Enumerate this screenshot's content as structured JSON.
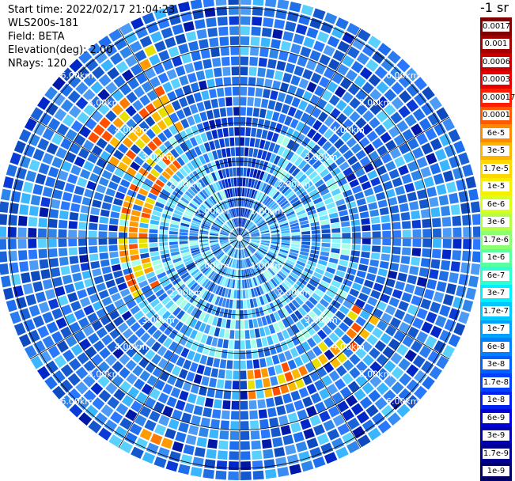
{
  "header": {
    "start_time": "Start time: 2022/02/17 21:04:23",
    "instrument": "WLS200s-181",
    "field": "Field: BETA",
    "elevation": "Elevation(deg): 2.00",
    "nrays": "NRays: 120"
  },
  "colorbar": {
    "title": "-1 sr",
    "labels": [
      "0.0017",
      "0.001",
      "0.0006",
      "0.0003",
      "0.00017",
      "0.0001",
      "6e-5",
      "3e-5",
      "1.7e-5",
      "1e-5",
      "6e-6",
      "3e-6",
      "1.7e-6",
      "1e-6",
      "6e-7",
      "3e-7",
      "1.7e-7",
      "1e-7",
      "6e-8",
      "3e-8",
      "1.7e-8",
      "1e-8",
      "6e-9",
      "3e-9",
      "1.7e-9",
      "1e-9"
    ],
    "colors": [
      "#7f0000",
      "#a50000",
      "#c80000",
      "#e60000",
      "#ff1e00",
      "#ff5a00",
      "#ff8a00",
      "#ffb400",
      "#ffd700",
      "#f5f000",
      "#d8ff1e",
      "#b4ff46",
      "#8cff6e",
      "#5affa0",
      "#2effcc",
      "#00f0ff",
      "#00c8ff",
      "#00a0ff",
      "#0080ff",
      "#0060ff",
      "#0040ff",
      "#0020f0",
      "#0000d8",
      "#0000b4",
      "#000090",
      "#000066"
    ]
  },
  "range_rings": {
    "labels": [
      "1.00km",
      "2.00km",
      "3.00km",
      "4.00km",
      "5.00km",
      "6.00km"
    ]
  },
  "colors": {
    "background": "#ffffff",
    "grid": "#000000",
    "dominant": "#1f6fe6"
  }
}
